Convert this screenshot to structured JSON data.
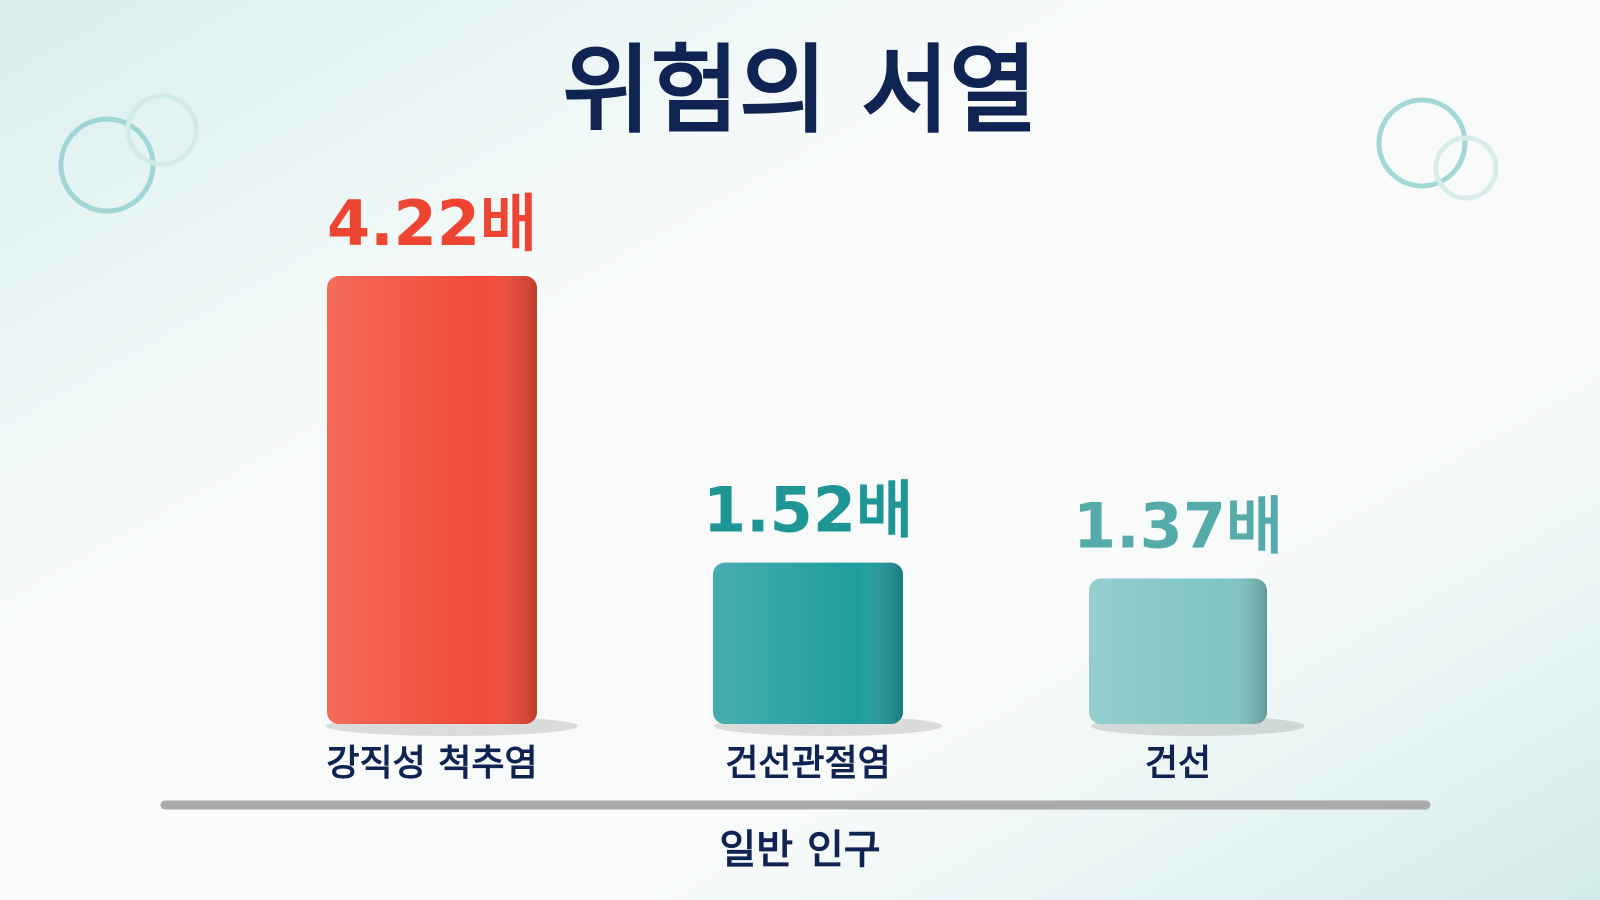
{
  "chart_data": {
    "type": "bar",
    "title": "위험의 서열",
    "categories": [
      "강직성 척추염",
      "건선관절염",
      "건선"
    ],
    "values": [
      4.22,
      1.52,
      1.37
    ],
    "value_labels": [
      "4.22배",
      "1.52배",
      "1.37배"
    ],
    "colors": [
      "#f24a36",
      "#1f9c9e",
      "#7fc4c4"
    ],
    "label_colors": [
      "#ee4432",
      "#1e9696",
      "#55aaaa"
    ],
    "x_label": "일반 인구"
  }
}
